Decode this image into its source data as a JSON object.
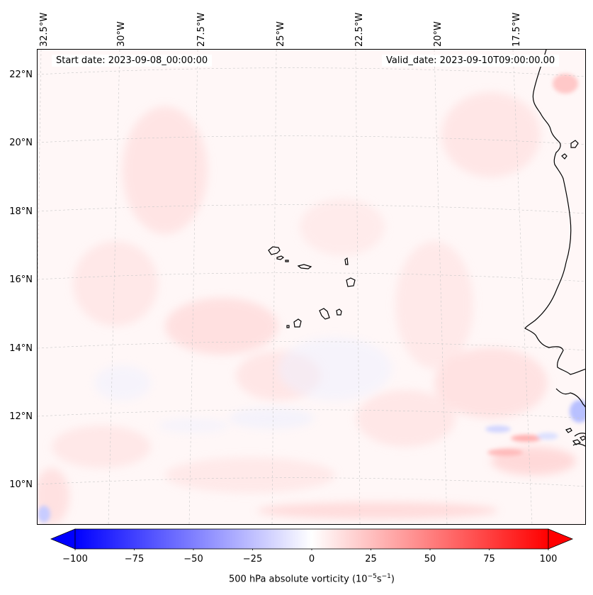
{
  "map": {
    "start_date": "Start date: 2023-09-08_00:00:00",
    "valid_date": "Valid_date: 2023-09-10T09:00:00.00",
    "lon_labels": [
      "32.5°W",
      "30°W",
      "27.5°W",
      "25°W",
      "22.5°W",
      "20°W",
      "17.5°W"
    ],
    "lat_labels": [
      "22°N",
      "20°N",
      "18°N",
      "16°N",
      "14°N",
      "12°N",
      "10°N"
    ],
    "background_color": "#fff7f7",
    "positive_color": "#ff0000",
    "negative_color": "#0000ff"
  },
  "colorbar": {
    "label": "500 hPa absolute vorticity (10",
    "label_exp1": "−5",
    "label_mid": "s",
    "label_exp2": "−1",
    "label_end": ")",
    "ticks": [
      "−100",
      "−75",
      "−50",
      "−25",
      "0",
      "25",
      "50",
      "75",
      "100"
    ],
    "range": [
      -100,
      100
    ]
  }
}
